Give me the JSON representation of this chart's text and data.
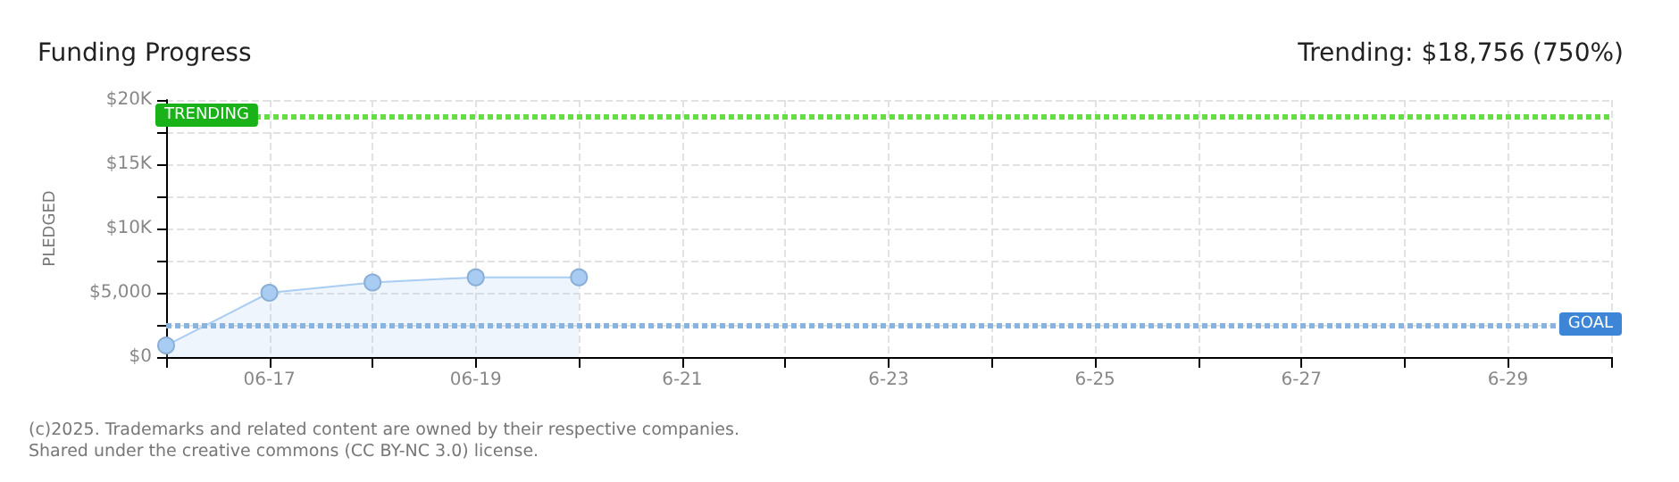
{
  "chart_data": {
    "type": "area",
    "title": "Funding Progress",
    "subtitle": "Trending: $18,756 (750%)",
    "ylabel": "PLEDGED",
    "categories": [
      null,
      "06-17",
      null,
      "06-19",
      null,
      "6-21",
      null,
      "6-23",
      null,
      "6-25",
      null,
      "6-27",
      null,
      "6-29",
      null
    ],
    "series": [
      {
        "color": "#a9cdf2",
        "values": [
          900,
          5000,
          5800,
          6200,
          6200,
          null,
          null,
          null,
          null,
          null,
          null,
          null,
          null,
          null,
          null
        ]
      }
    ],
    "ylim": [
      0,
      20000
    ],
    "yticks": [
      {
        "value": 0,
        "label": "$0"
      },
      {
        "value": 2500,
        "label": null
      },
      {
        "value": 5000,
        "label": "$5,000"
      },
      {
        "value": 7500,
        "label": null
      },
      {
        "value": 10000,
        "label": "$10K"
      },
      {
        "value": 12500,
        "label": null
      },
      {
        "value": 15000,
        "label": "$15K"
      },
      {
        "value": 17500,
        "label": null
      },
      {
        "value": 20000,
        "label": "$20K"
      }
    ],
    "ref_lines": [
      {
        "axis": "y",
        "value": 18756,
        "label": "TRENDING",
        "color": "#66dd44",
        "line_style": "dotted"
      },
      {
        "axis": "y",
        "value": 2500,
        "label": "GOAL",
        "color": "#8ab4e0",
        "line_style": "dotted"
      }
    ],
    "grid": true,
    "marker": "circle",
    "annotations": [
      "(c)2025. Trademarks and related content are owned by their respective companies.",
      "Shared under the creative commons (CC BY-NC 3.0) license."
    ]
  }
}
